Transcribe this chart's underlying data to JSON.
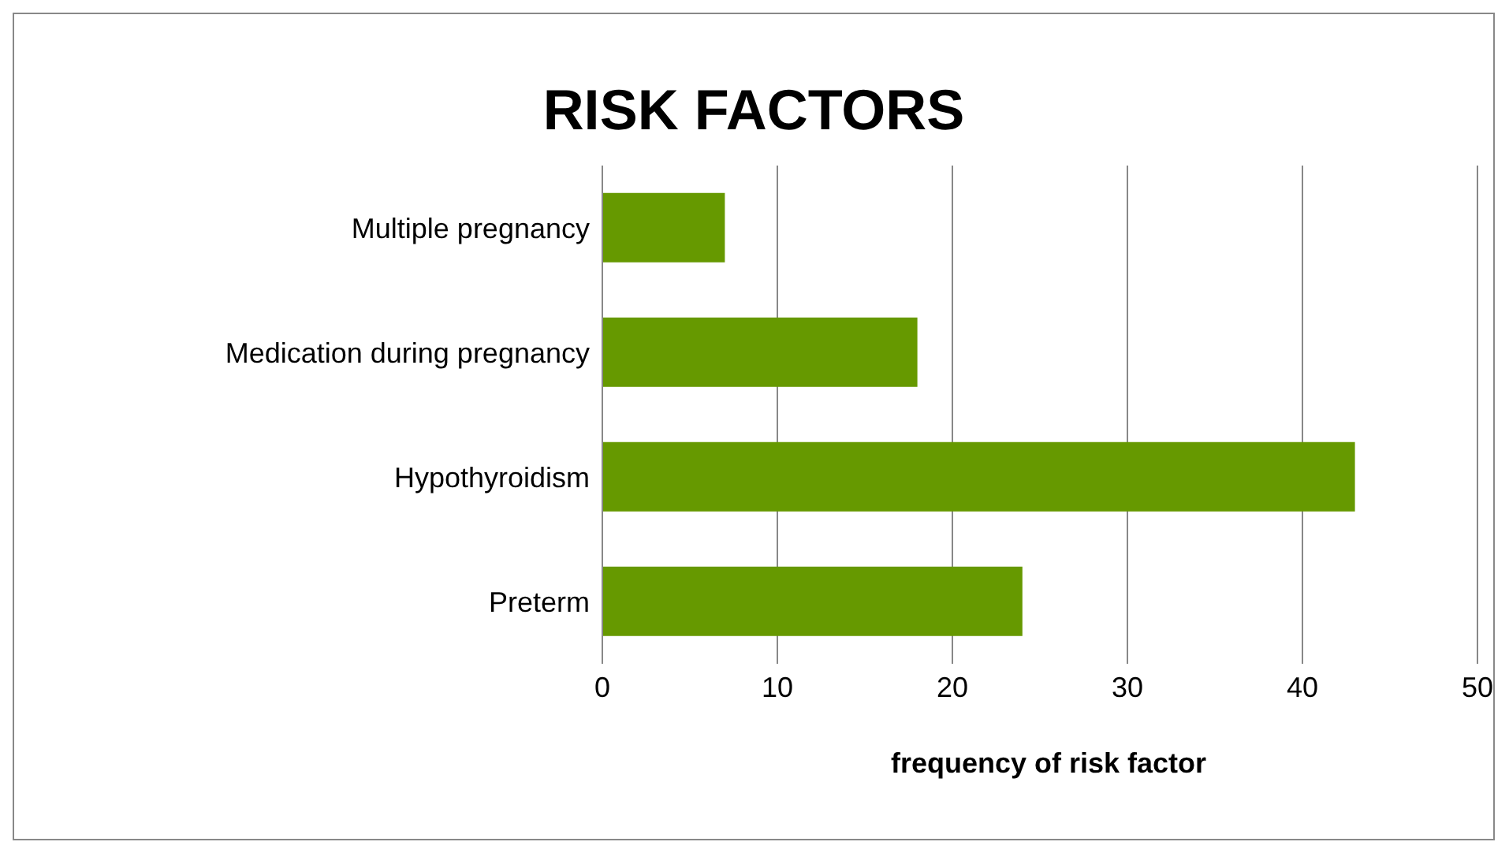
{
  "chart_data": {
    "type": "bar",
    "orientation": "horizontal",
    "title": "RISK FACTORS",
    "xlabel": "frequency of risk factor",
    "categories": [
      "Multiple pregnancy",
      "Medication during pregnancy",
      "Hypothyroidism",
      "Preterm"
    ],
    "values": [
      7,
      18,
      43,
      24
    ],
    "color": "#669900",
    "xlim": [
      0,
      50
    ],
    "xticks": [
      0,
      10,
      20,
      30,
      40,
      50
    ],
    "grid": "x"
  }
}
